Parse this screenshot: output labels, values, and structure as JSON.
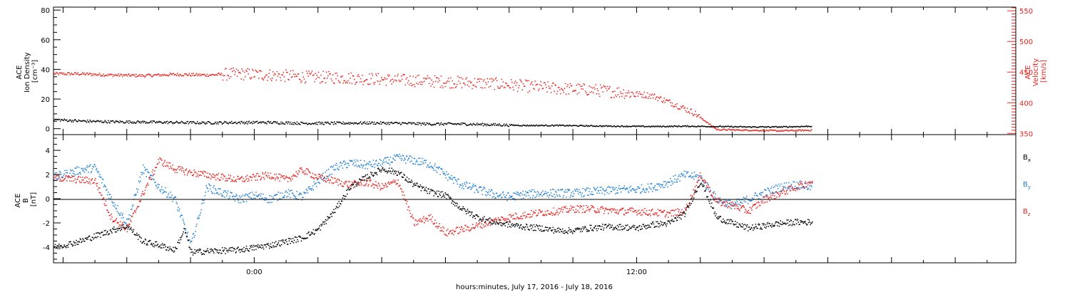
{
  "xlabel": "hours:minutes, July 17, 2016 - July 18, 2016",
  "colors": {
    "density": "#000000",
    "velocity": "#e8231f",
    "bx": "#000000",
    "by": "#1e7fd6",
    "bz": "#e8231f",
    "frame": "#000000"
  },
  "chart_data": [
    {
      "type": "scatter",
      "panel": "top",
      "x_unit": "hours from 2016-07-17 00:00 UT",
      "xlim": [
        -6.3,
        23.9
      ],
      "x_ticks": [
        {
          "value": 0,
          "label": "0:00"
        },
        {
          "value": 12,
          "label": "12:00"
        }
      ],
      "ylabel_left": [
        "ACE",
        "Ion Density",
        "[cm⁻³]"
      ],
      "ylim_left": [
        -4,
        82
      ],
      "y_ticks_left": [
        0,
        20,
        40,
        60,
        80
      ],
      "ylabel_right": [
        "ACE",
        "Velocity",
        "[km/s]"
      ],
      "ylim_right": [
        348,
        556
      ],
      "y_ticks_right": [
        350,
        400,
        450,
        500,
        550
      ],
      "series": [
        {
          "axis": "left",
          "color": "#000000",
          "x": [
            -6.3,
            -5.5,
            -4.5,
            -3.5,
            -2.5,
            -1.5,
            -0.5,
            0.5,
            1.5,
            2.5,
            3.5,
            4.5,
            5.5,
            6.5,
            7.5,
            8.5,
            9.5,
            10.5,
            11.5,
            12.5,
            13.5,
            14.5,
            15.5,
            16.5,
            17.5
          ],
          "y": [
            6.5,
            5.5,
            5,
            4.8,
            4.5,
            4.3,
            4.5,
            4.5,
            4,
            4,
            4.2,
            4,
            3.5,
            3.5,
            3,
            2.5,
            2.5,
            2.2,
            2,
            1.8,
            2,
            1.8,
            1.5,
            1.5,
            2
          ]
        },
        {
          "axis": "right",
          "color": "#e8231f",
          "x": [
            -6.3,
            -5.5,
            -4.5,
            -3.5,
            -2.5,
            -1.5,
            -0.5,
            0.5,
            1.5,
            2.5,
            3.5,
            4.5,
            5.5,
            6.5,
            7.5,
            8.5,
            9.5,
            10.5,
            11.5,
            12.5,
            13.2,
            13.8,
            14.5,
            15.5,
            16.5,
            17.5
          ],
          "y": [
            448,
            448,
            446,
            445,
            447,
            446,
            448,
            446,
            443,
            442,
            440,
            438,
            436,
            434,
            432,
            428,
            424,
            422,
            418,
            412,
            398,
            384,
            357,
            356,
            355,
            356
          ]
        }
      ]
    },
    {
      "type": "scatter",
      "panel": "bottom",
      "x_unit": "hours from 2016-07-17 00:00 UT",
      "xlim": [
        -6.3,
        23.9
      ],
      "ylabel": [
        "ACE",
        "B",
        "[nT]"
      ],
      "ylim": [
        -5.3,
        5.3
      ],
      "y_ticks": [
        -4,
        -2,
        0,
        2,
        4
      ],
      "series": [
        {
          "name": "Bx",
          "color": "#000000",
          "x": [
            -6.3,
            -5.5,
            -4.5,
            -4.0,
            -3.5,
            -3.0,
            -2.5,
            -2.2,
            -2.0,
            -1.5,
            -0.5,
            0.5,
            1.5,
            2.0,
            2.5,
            3.0,
            3.5,
            4.0,
            4.5,
            5.0,
            5.5,
            6.0,
            6.5,
            7.0,
            7.5,
            8.0,
            8.5,
            9.0,
            9.5,
            10.0,
            10.5,
            11.0,
            11.5,
            12.0,
            12.5,
            13.0,
            13.5,
            14.0,
            14.5,
            15.0,
            15.5,
            16.0,
            16.5,
            17.0,
            17.5
          ],
          "y": [
            -4.0,
            -3.5,
            -2.6,
            -2.2,
            -3.5,
            -3.8,
            -4.2,
            -2.5,
            -4.4,
            -4.3,
            -4.2,
            -3.8,
            -3.2,
            -2.5,
            -1.0,
            1.0,
            1.8,
            2.5,
            2.2,
            1.2,
            0.6,
            0.3,
            -0.8,
            -1.5,
            -1.9,
            -2.1,
            -2.3,
            -2.4,
            -2.6,
            -2.6,
            -2.4,
            -2.3,
            -2.3,
            -2.4,
            -2.1,
            -2.0,
            -1.2,
            1.5,
            -1.5,
            -2.0,
            -2.4,
            -2.2,
            -2.0,
            -1.9,
            -1.9
          ]
        },
        {
          "name": "By",
          "color": "#1e7fd6",
          "x": [
            -6.3,
            -5.5,
            -5.0,
            -4.5,
            -4.0,
            -3.5,
            -3.0,
            -2.5,
            -2.0,
            -1.5,
            -1.0,
            -0.5,
            0,
            0.5,
            1.0,
            1.5,
            2.0,
            2.5,
            3.0,
            3.5,
            4.0,
            4.5,
            5.0,
            5.5,
            6.0,
            6.5,
            7.0,
            7.5,
            8.0,
            8.5,
            9.0,
            9.5,
            10.0,
            10.5,
            11.0,
            11.5,
            12.0,
            12.5,
            13.0,
            13.5,
            14.0,
            14.5,
            15.0,
            15.5,
            16.0,
            16.5,
            17.0,
            17.5
          ],
          "y": [
            1.8,
            2.4,
            2.6,
            0.0,
            -2.0,
            2.5,
            1.0,
            0.0,
            -3.8,
            1.0,
            0.5,
            0.0,
            0.3,
            0.0,
            0.5,
            0.2,
            1.5,
            2.6,
            3.0,
            2.8,
            3.0,
            3.4,
            3.2,
            2.9,
            2.0,
            1.2,
            0.8,
            0.4,
            0.2,
            0.4,
            0.5,
            0.5,
            0.5,
            0.6,
            0.7,
            0.8,
            0.8,
            1.0,
            1.4,
            2.0,
            1.8,
            0.0,
            -0.5,
            0.0,
            0.5,
            1.0,
            1.2,
            1.0
          ]
        },
        {
          "name": "Bz",
          "color": "#e8231f",
          "x": [
            -6.3,
            -5.5,
            -5.0,
            -4.5,
            -4.0,
            -3.5,
            -3.0,
            -2.5,
            -2.0,
            -1.5,
            -1.0,
            -0.5,
            0,
            0.5,
            1.0,
            1.5,
            2.0,
            2.5,
            3.0,
            3.5,
            4.0,
            4.5,
            5.0,
            5.5,
            6.0,
            6.5,
            7.0,
            7.5,
            8.0,
            8.5,
            9.0,
            9.5,
            10.0,
            10.5,
            11.0,
            11.5,
            12.0,
            12.5,
            13.0,
            13.5,
            14.0,
            14.5,
            15.0,
            15.5,
            16.0,
            16.5,
            17.0,
            17.5
          ],
          "y": [
            1.8,
            1.6,
            1.5,
            -1.5,
            -2.5,
            0.5,
            3.2,
            2.5,
            2.2,
            2.0,
            1.8,
            1.6,
            1.8,
            2.0,
            1.6,
            2.4,
            1.8,
            1.5,
            1.2,
            1.4,
            1.0,
            1.5,
            -2.0,
            -1.5,
            -2.8,
            -2.5,
            -2.2,
            -1.8,
            -1.5,
            -1.3,
            -1.1,
            -1.0,
            -0.8,
            -0.8,
            -0.9,
            -1.0,
            -1.0,
            -1.1,
            -1.2,
            -1.0,
            2.0,
            -0.2,
            -0.5,
            -1.0,
            0.0,
            0.5,
            1.0,
            1.5
          ]
        }
      ]
    }
  ]
}
